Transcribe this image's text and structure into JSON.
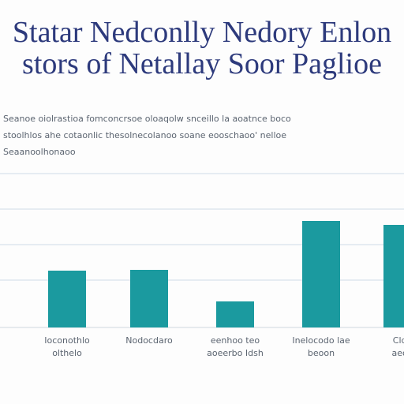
{
  "header": {
    "title_lines": [
      "Statar Nedconlly Nedory Enlon",
      "stors of Netallay Soor Paglioe"
    ],
    "description_lines": [
      "Seanoe oiolrastioa fomconcrsoe oloaqolw snceillo la aoatnce boco",
      "stoolhlos ahe cotaonlic thesolnecolanoo soane eooschaoo' nelloe",
      "Seaanoolhonaoo"
    ]
  },
  "chart_data": {
    "type": "bar",
    "categories": [
      "Ioconothlo\nolthelo",
      "Nodocdaro",
      "eenhoo teo\naoeerbo Idsh",
      "Inelocodo lae\nbeoon",
      "Cldo\naeoe"
    ],
    "values": [
      72,
      73,
      33,
      135,
      130
    ],
    "color": "#1b9a9f",
    "ylim": [
      0,
      200
    ],
    "yticks": [
      60,
      105,
      150,
      195
    ],
    "grid": true
  }
}
